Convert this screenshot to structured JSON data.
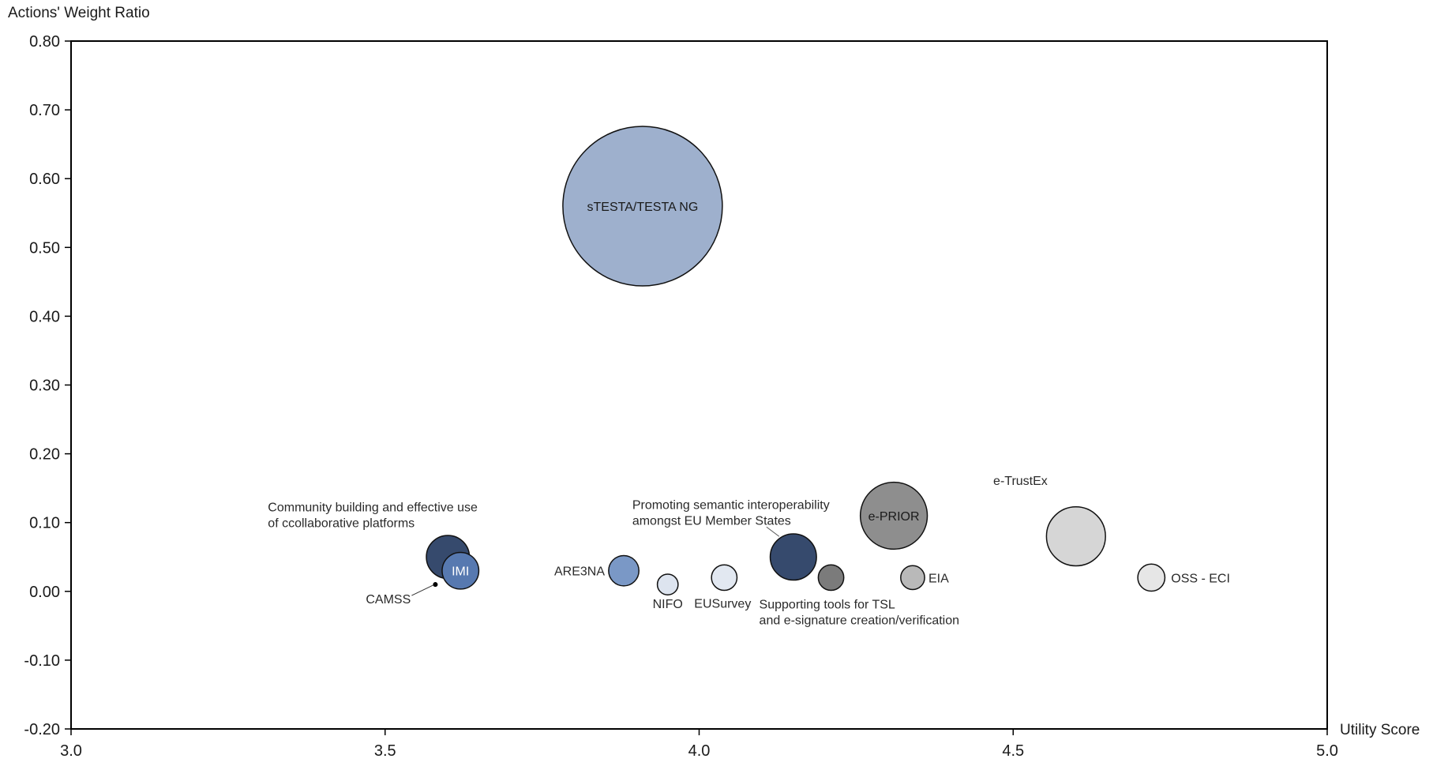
{
  "chart_data": {
    "type": "scatter",
    "subtype": "bubble",
    "xlabel": "Utility Score",
    "ylabel": "Actions' Weight Ratio",
    "xlim": [
      3.0,
      5.0
    ],
    "ylim": [
      -0.2,
      0.8
    ],
    "x_ticks": [
      "3.0",
      "3.5",
      "4.0",
      "4.5",
      "5.0"
    ],
    "y_ticks": [
      "-0.20",
      "-0.10",
      "0.00",
      "0.10",
      "0.20",
      "0.30",
      "0.40",
      "0.50",
      "0.60",
      "0.70",
      "0.80"
    ],
    "grid": false,
    "points": [
      {
        "key": "stesta",
        "x": 3.91,
        "y": 0.56,
        "size": 1.0,
        "color": "#9eb0cd",
        "label": "sTESTA/TESTA  NG",
        "label_inside": true,
        "label_color": "#1a1a1a"
      },
      {
        "key": "community",
        "x": 3.6,
        "y": 0.05,
        "size": 0.27,
        "color": "#364a6d",
        "label": "Community building and effective use\nof ccollaborative platforms",
        "label_inside": false,
        "label_color": "#2a2a2a"
      },
      {
        "key": "imi",
        "x": 3.62,
        "y": 0.03,
        "size": 0.23,
        "color": "#5779b0",
        "label": "IMI",
        "label_inside": true,
        "label_color": "#ffffff"
      },
      {
        "key": "camss",
        "x": 3.58,
        "y": 0.01,
        "size": 0.03,
        "color": "#000000",
        "label": "CAMSS",
        "label_inside": false,
        "label_color": "#2a2a2a"
      },
      {
        "key": "are3na",
        "x": 3.88,
        "y": 0.03,
        "size": 0.19,
        "color": "#7a98c6",
        "label": "ARE3NA",
        "label_inside": false,
        "label_color": "#2a2a2a"
      },
      {
        "key": "nifo",
        "x": 3.95,
        "y": 0.01,
        "size": 0.13,
        "color": "#dde4ef",
        "label": "NIFO",
        "label_inside": false,
        "label_color": "#2a2a2a"
      },
      {
        "key": "eusurvey",
        "x": 4.04,
        "y": 0.02,
        "size": 0.16,
        "color": "#e2e8f1",
        "label": "EUSurvey",
        "label_inside": false,
        "label_color": "#2a2a2a"
      },
      {
        "key": "semantic",
        "x": 4.15,
        "y": 0.05,
        "size": 0.29,
        "color": "#364a6d",
        "label": "Promoting  semantic  interoperability\namongst  EU  Member  States",
        "label_inside": false,
        "label_color": "#2a2a2a"
      },
      {
        "key": "tsl",
        "x": 4.21,
        "y": 0.02,
        "size": 0.16,
        "color": "#7b7b7b",
        "label": "Supporting tools  for TSL\nand e-signature creation/verification",
        "label_inside": false,
        "label_color": "#2a2a2a"
      },
      {
        "key": "eprior",
        "x": 4.31,
        "y": 0.11,
        "size": 0.42,
        "color": "#8e8e8e",
        "label": "e-PRIOR",
        "label_inside": true,
        "label_color": "#1a1a1a"
      },
      {
        "key": "eia",
        "x": 4.34,
        "y": 0.02,
        "size": 0.15,
        "color": "#b9b9b9",
        "label": "EIA",
        "label_inside": false,
        "label_color": "#2a2a2a"
      },
      {
        "key": "etrustex",
        "x": 4.6,
        "y": 0.08,
        "size": 0.37,
        "color": "#d6d6d6",
        "label": "e-TrustEx",
        "label_inside": false,
        "label_color": "#2a2a2a"
      },
      {
        "key": "ossc",
        "x": 4.72,
        "y": 0.02,
        "size": 0.17,
        "color": "#e6e6e6",
        "label": "OSS - ECI",
        "label_inside": false,
        "label_color": "#2a2a2a"
      }
    ]
  }
}
